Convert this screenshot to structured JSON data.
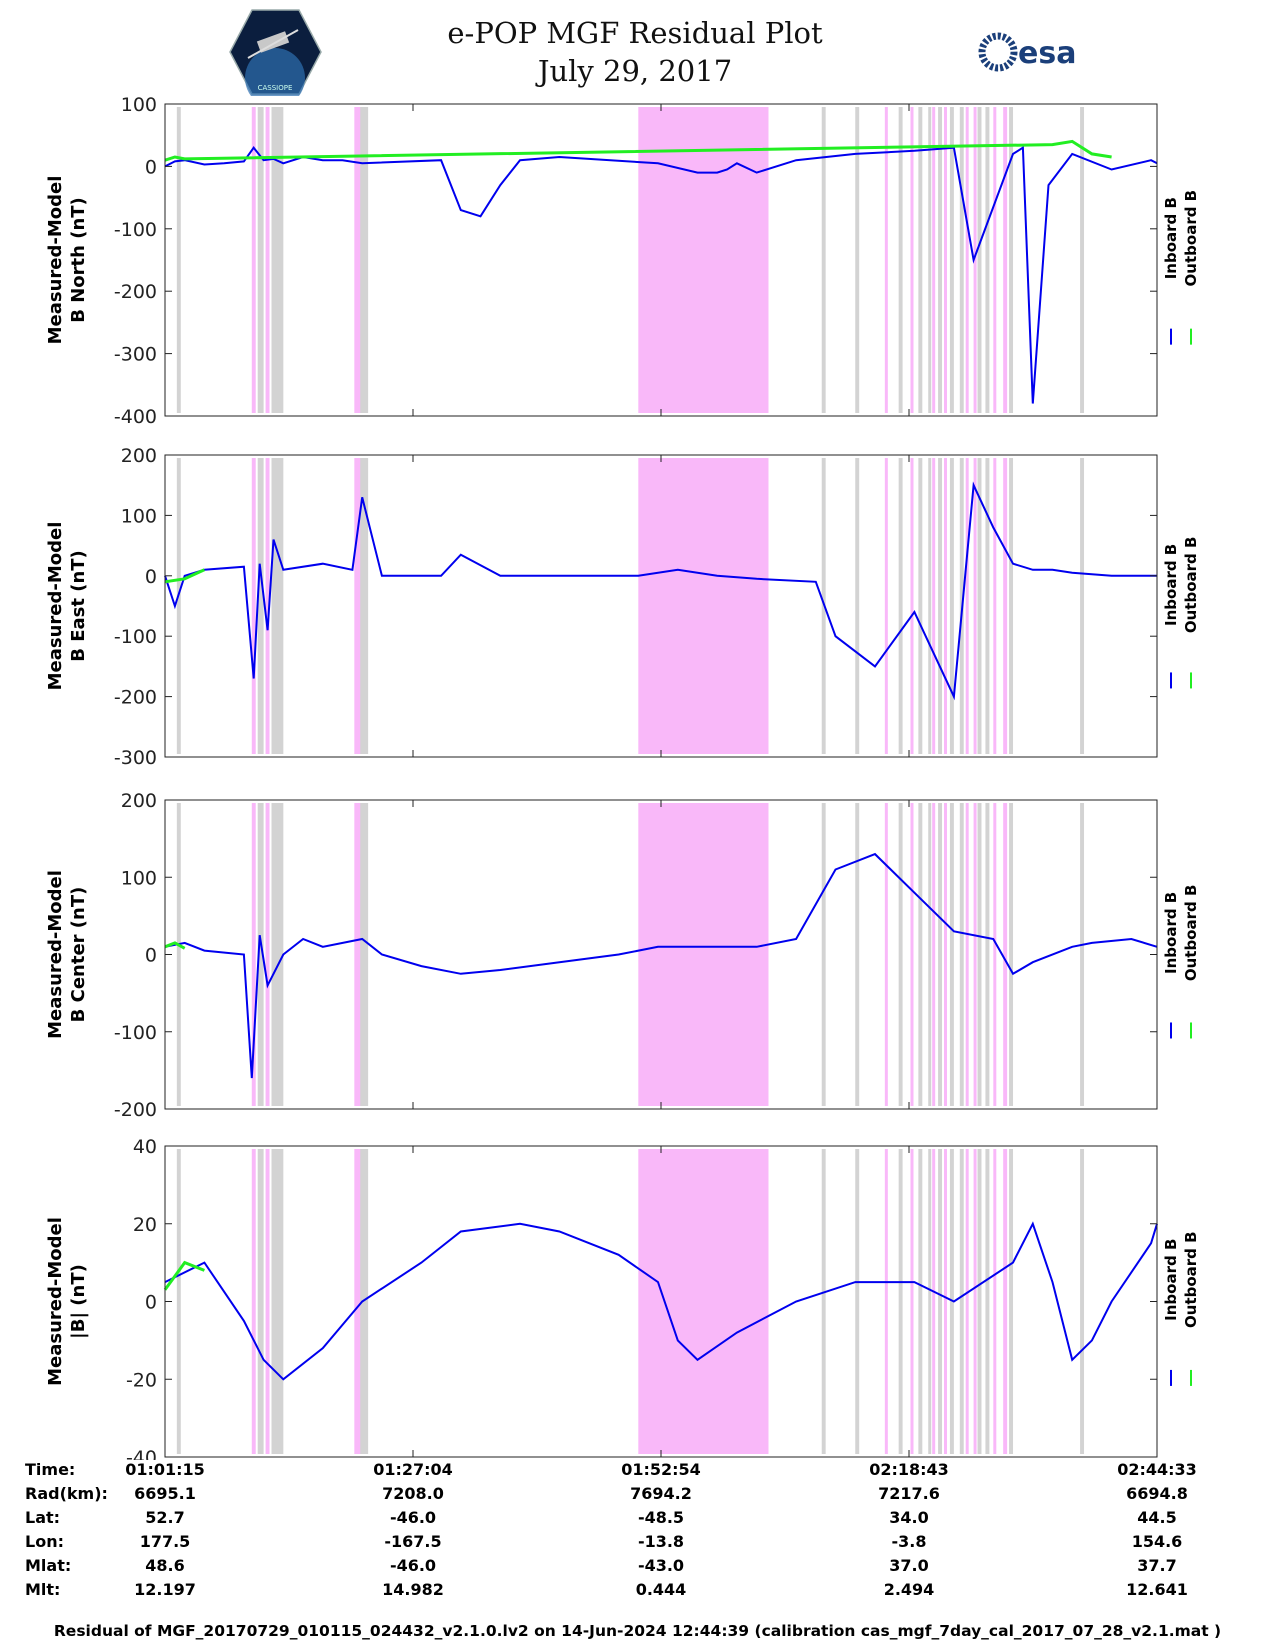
{
  "title": {
    "line1": "e-POP MGF Residual Plot",
    "line2": "July 29, 2017"
  },
  "logos": {
    "left_text": "CASSIOPE",
    "right_text": "esa"
  },
  "colors": {
    "inboard": "#0000ee",
    "outboard": "#22ee22",
    "gap_pink": "#f9b8f9",
    "gap_gray": "#d3d3d3"
  },
  "chart_data": [
    {
      "type": "line",
      "ylabel_line1": "Measured-Model",
      "ylabel_line2": "B North (nT)",
      "ylim": [
        -400,
        100
      ],
      "yticks": [
        "100",
        "0",
        "-100",
        "-200",
        "-300",
        "-400"
      ],
      "legend": [
        "Inboard B",
        "Outboard B"
      ],
      "series": [
        {
          "name": "Inboard B",
          "x": [
            0,
            5,
            10,
            20,
            30,
            40,
            45,
            50,
            55,
            60,
            70,
            80,
            90,
            100,
            140,
            150,
            160,
            170,
            180,
            200,
            250,
            270,
            280,
            285,
            290,
            300,
            320,
            350,
            380,
            400,
            410,
            430,
            435,
            440,
            448,
            460,
            480,
            500,
            503
          ],
          "values": [
            0,
            8,
            10,
            3,
            5,
            8,
            30,
            10,
            12,
            5,
            15,
            10,
            10,
            5,
            10,
            -70,
            -80,
            -30,
            10,
            15,
            5,
            -10,
            -10,
            -5,
            5,
            -10,
            10,
            20,
            25,
            30,
            -150,
            20,
            30,
            -380,
            -30,
            20,
            -5,
            10,
            5
          ]
        },
        {
          "name": "Outboard B",
          "x": [
            0,
            5,
            10,
            450,
            460,
            470,
            480
          ],
          "values": [
            10,
            15,
            12,
            35,
            40,
            20,
            15
          ]
        }
      ]
    },
    {
      "type": "line",
      "ylabel_line1": "Measured-Model",
      "ylabel_line2": "B East (nT)",
      "ylim": [
        -300,
        200
      ],
      "yticks": [
        "200",
        "100",
        "0",
        "-100",
        "-200",
        "-300"
      ],
      "legend": [
        "Inboard B",
        "Outboard B"
      ],
      "series": [
        {
          "name": "Inboard B",
          "x": [
            0,
            5,
            10,
            20,
            40,
            45,
            48,
            52,
            55,
            60,
            80,
            95,
            100,
            110,
            140,
            150,
            170,
            180,
            200,
            240,
            260,
            280,
            300,
            330,
            340,
            360,
            380,
            400,
            410,
            420,
            430,
            440,
            450,
            460,
            480,
            500,
            503
          ],
          "values": [
            0,
            -50,
            0,
            10,
            15,
            -170,
            20,
            -90,
            60,
            10,
            20,
            10,
            130,
            0,
            0,
            35,
            0,
            0,
            0,
            0,
            10,
            0,
            -5,
            -10,
            -100,
            -150,
            -60,
            -200,
            150,
            80,
            20,
            10,
            10,
            5,
            0,
            0,
            0
          ]
        },
        {
          "name": "Outboard B",
          "x": [
            0,
            10,
            20
          ],
          "values": [
            -10,
            -5,
            10
          ]
        }
      ]
    },
    {
      "type": "line",
      "ylabel_line1": "Measured-Model",
      "ylabel_line2": "B Center (nT)",
      "ylim": [
        -200,
        200
      ],
      "yticks": [
        "200",
        "100",
        "0",
        "-100",
        "-200"
      ],
      "legend": [
        "Inboard B",
        "Outboard B"
      ],
      "series": [
        {
          "name": "Inboard B",
          "x": [
            0,
            10,
            20,
            40,
            44,
            48,
            52,
            60,
            70,
            80,
            100,
            110,
            130,
            150,
            170,
            200,
            230,
            250,
            300,
            320,
            340,
            360,
            380,
            400,
            420,
            430,
            440,
            460,
            470,
            490,
            503
          ],
          "values": [
            10,
            15,
            5,
            0,
            -160,
            25,
            -40,
            0,
            20,
            10,
            20,
            0,
            -15,
            -25,
            -20,
            -10,
            0,
            10,
            10,
            20,
            110,
            130,
            80,
            30,
            20,
            -25,
            -10,
            10,
            15,
            20,
            10
          ]
        },
        {
          "name": "Outboard B",
          "x": [
            0,
            5,
            10
          ],
          "values": [
            10,
            15,
            8
          ]
        }
      ]
    },
    {
      "type": "line",
      "ylabel_line1": "Measured-Model",
      "ylabel_line2": "|B| (nT)",
      "ylim": [
        -40,
        40
      ],
      "yticks": [
        "40",
        "20",
        "0",
        "-20",
        "-40"
      ],
      "legend": [
        "Inboard B",
        "Outboard B"
      ],
      "series": [
        {
          "name": "Inboard B",
          "x": [
            0,
            20,
            40,
            50,
            60,
            80,
            100,
            130,
            150,
            180,
            200,
            230,
            250,
            260,
            270,
            290,
            320,
            350,
            380,
            400,
            430,
            440,
            450,
            460,
            470,
            480,
            500,
            503
          ],
          "values": [
            5,
            10,
            -5,
            -15,
            -20,
            -12,
            0,
            10,
            18,
            20,
            18,
            12,
            5,
            -10,
            -15,
            -8,
            0,
            5,
            5,
            0,
            10,
            20,
            5,
            -15,
            -10,
            0,
            15,
            20
          ]
        },
        {
          "name": "Outboard B",
          "x": [
            0,
            10,
            20
          ],
          "values": [
            3,
            10,
            8
          ]
        }
      ]
    }
  ],
  "gaps": {
    "pink": [
      [
        44,
        46
      ],
      [
        51,
        53
      ],
      [
        96,
        99
      ],
      [
        240,
        306
      ],
      [
        365,
        366
      ],
      [
        378,
        379
      ],
      [
        389,
        390
      ],
      [
        395,
        396
      ],
      [
        406,
        407
      ],
      [
        410,
        411
      ],
      [
        420,
        421
      ],
      [
        425,
        427
      ]
    ],
    "gray": [
      [
        6,
        8
      ],
      [
        47,
        50
      ],
      [
        54,
        60
      ],
      [
        97,
        103
      ],
      [
        333,
        335
      ],
      [
        350,
        352
      ],
      [
        372,
        374
      ],
      [
        382,
        384
      ],
      [
        387,
        388
      ],
      [
        392,
        394
      ],
      [
        398,
        400
      ],
      [
        403,
        405
      ],
      [
        412,
        414
      ],
      [
        416,
        418
      ],
      [
        428,
        430
      ],
      [
        464,
        466
      ]
    ]
  },
  "x_range_minutes": [
    0,
    503
  ],
  "table": {
    "labels": [
      "Time:",
      "Rad(km):",
      "Lat:",
      "Lon:",
      "Mlat:",
      "Mlt:"
    ],
    "columns": [
      [
        "01:01:15",
        "6695.1",
        "52.7",
        "177.5",
        "48.6",
        "12.197"
      ],
      [
        "01:27:04",
        "7208.0",
        "-46.0",
        "-167.5",
        "-46.0",
        "14.982"
      ],
      [
        "01:52:54",
        "7694.2",
        "-48.5",
        "-13.8",
        "-43.0",
        "0.444"
      ],
      [
        "02:18:43",
        "7217.6",
        "34.0",
        "-3.8",
        "37.0",
        "2.494"
      ],
      [
        "02:44:33",
        "6694.8",
        "44.5",
        "154.6",
        "37.7",
        "12.641"
      ]
    ]
  },
  "footer": "Residual of MGF_20170729_010115_024432_v2.1.0.lv2 on 14-Jun-2024 12:44:39 (calibration cas_mgf_7day_cal_2017_07_28_v2.1.mat )"
}
